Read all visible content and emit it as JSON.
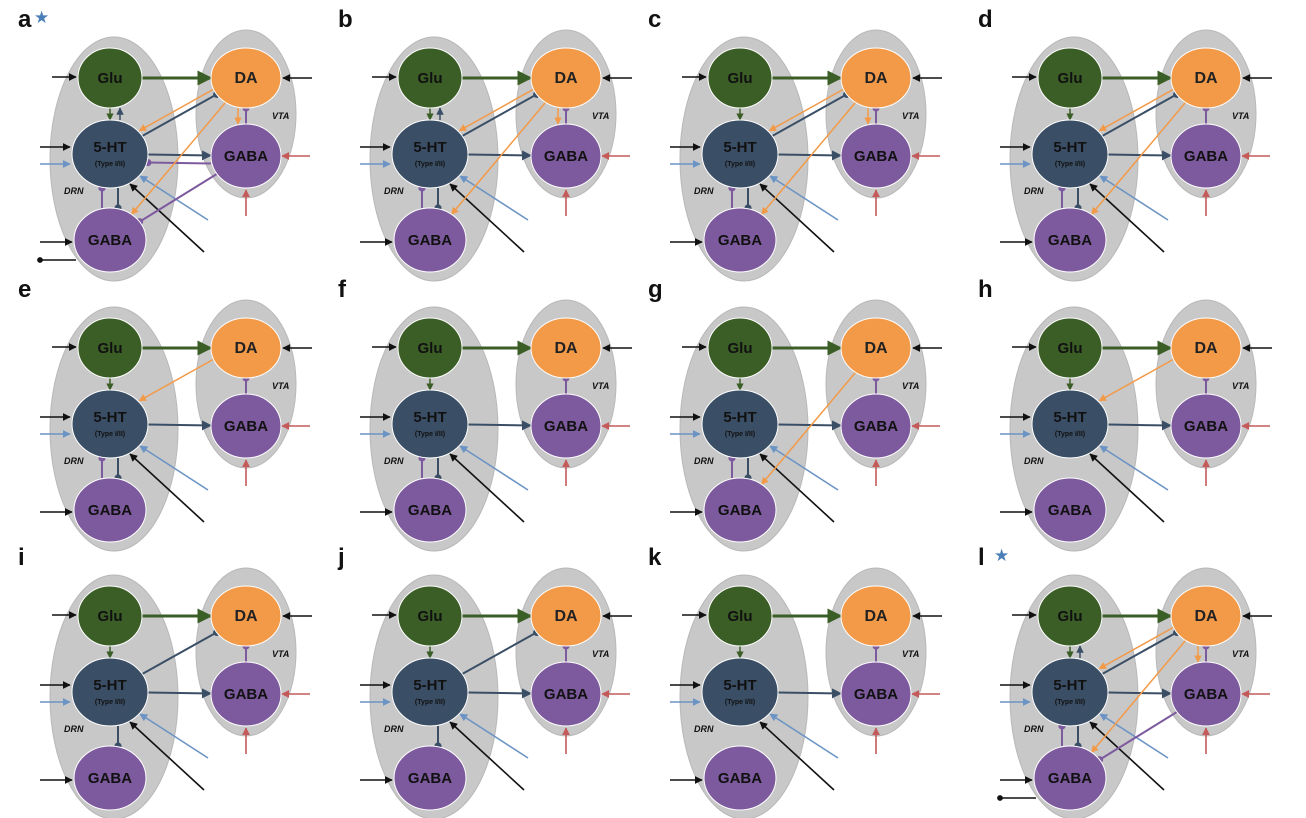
{
  "node_labels": {
    "glu": "Glu",
    "da": "DA",
    "ht": "5-HT",
    "ht_sub": "(Type I/II)",
    "vta_gaba": "GABA",
    "drn_gaba": "GABA"
  },
  "region_labels": {
    "drn": "DRN",
    "vta": "VTA"
  },
  "colors": {
    "glu": "#3b5d26",
    "da": "#f39a48",
    "ht": "#3a4e66",
    "gaba": "#7d5a9e",
    "region": "#c8c8c8",
    "input_black": "#111111",
    "input_blue": "#6b94c4",
    "input_red": "#c45a5a"
  },
  "panels": [
    {
      "id": "a",
      "label": "a",
      "star": true,
      "edges": [
        "glu_da",
        "glu_ht",
        "ht_glu",
        "ht_da",
        "da_ht",
        "ht_vgaba",
        "vgaba_ht",
        "da_vgaba",
        "vgaba_da",
        "ht_dgaba",
        "dgaba_ht",
        "da_dgaba",
        "vgaba_dgaba"
      ],
      "dgaba_extra": true
    },
    {
      "id": "b",
      "label": "b",
      "star": false,
      "edges": [
        "glu_da",
        "glu_ht",
        "ht_glu",
        "ht_da",
        "da_ht",
        "ht_vgaba",
        "vgaba_da",
        "da_vgaba",
        "ht_dgaba",
        "dgaba_ht",
        "da_dgaba"
      ],
      "dgaba_extra": false
    },
    {
      "id": "c",
      "label": "c",
      "star": false,
      "edges": [
        "glu_da",
        "glu_ht",
        "ht_da",
        "da_ht",
        "ht_vgaba",
        "vgaba_da",
        "da_vgaba",
        "ht_dgaba",
        "dgaba_ht",
        "da_dgaba"
      ],
      "dgaba_extra": false
    },
    {
      "id": "d",
      "label": "d",
      "star": false,
      "edges": [
        "glu_da",
        "glu_ht",
        "ht_da",
        "da_ht",
        "ht_vgaba",
        "vgaba_da",
        "ht_dgaba",
        "dgaba_ht",
        "da_dgaba"
      ],
      "dgaba_extra": false
    },
    {
      "id": "e",
      "label": "e",
      "star": false,
      "edges": [
        "glu_da",
        "glu_ht",
        "da_ht",
        "ht_vgaba",
        "vgaba_da",
        "ht_dgaba",
        "dgaba_ht"
      ],
      "dgaba_extra": false
    },
    {
      "id": "f",
      "label": "f",
      "star": false,
      "edges": [
        "glu_da",
        "glu_ht",
        "ht_vgaba",
        "vgaba_da",
        "ht_dgaba",
        "dgaba_ht"
      ],
      "dgaba_extra": false
    },
    {
      "id": "g",
      "label": "g",
      "star": false,
      "edges": [
        "glu_da",
        "glu_ht",
        "ht_vgaba",
        "vgaba_da",
        "ht_dgaba",
        "dgaba_ht",
        "da_dgaba"
      ],
      "dgaba_extra": false
    },
    {
      "id": "h",
      "label": "h",
      "star": false,
      "edges": [
        "glu_da",
        "glu_ht",
        "da_ht",
        "ht_vgaba",
        "vgaba_da"
      ],
      "dgaba_extra": false
    },
    {
      "id": "i",
      "label": "i",
      "star": false,
      "edges": [
        "glu_da",
        "glu_ht",
        "ht_da",
        "ht_vgaba",
        "vgaba_da",
        "ht_dgaba"
      ],
      "dgaba_extra": false
    },
    {
      "id": "j",
      "label": "j",
      "star": false,
      "edges": [
        "glu_da",
        "glu_ht",
        "ht_da",
        "ht_vgaba",
        "vgaba_da",
        "ht_dgaba"
      ],
      "dgaba_extra": false
    },
    {
      "id": "k",
      "label": "k",
      "star": false,
      "edges": [
        "glu_da",
        "glu_ht",
        "ht_vgaba",
        "vgaba_da"
      ],
      "dgaba_extra": false
    },
    {
      "id": "l",
      "label": "l",
      "star": true,
      "edges": [
        "glu_da",
        "glu_ht",
        "ht_glu",
        "ht_da",
        "da_ht",
        "ht_vgaba",
        "vgaba_da",
        "da_vgaba",
        "ht_dgaba",
        "dgaba_ht",
        "da_dgaba",
        "vgaba_dgaba"
      ],
      "dgaba_extra": true
    }
  ]
}
